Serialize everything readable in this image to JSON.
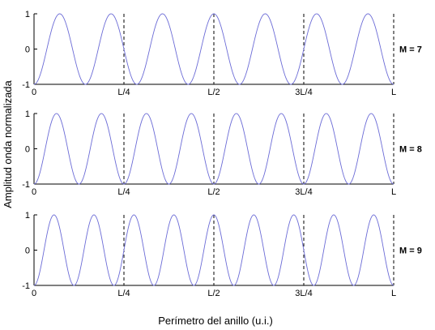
{
  "colors": {
    "wave": "#6b6bd6",
    "axes": "#000000",
    "markers": "#000000",
    "background": "#ffffff"
  },
  "chart_data": {
    "type": "line",
    "xlabel": "Perímetro del anillo (u.i.)",
    "ylabel": "Amplitud onda normalizada",
    "x_range": [
      0,
      1
    ],
    "x_tick_values": [
      0,
      0.25,
      0.5,
      0.75,
      1
    ],
    "x_tick_labels": [
      "0",
      "L/4",
      "L/2",
      "3L/4",
      "L"
    ],
    "y_range": [
      -1,
      1
    ],
    "y_tick_values": [
      1,
      0,
      -1
    ],
    "y_tick_labels": [
      "1",
      "0",
      "-1"
    ],
    "vertical_markers": [
      0.25,
      0.5,
      0.75,
      1
    ],
    "grid": false,
    "panels": [
      {
        "label": "M = 7",
        "cycles": 7,
        "function": "-cos(2*pi*M*x/L)"
      },
      {
        "label": "M = 8",
        "cycles": 8,
        "function": "-cos(2*pi*M*x/L)"
      },
      {
        "label": "M = 9",
        "cycles": 9,
        "function": "-cos(2*pi*M*x/L)"
      }
    ]
  }
}
